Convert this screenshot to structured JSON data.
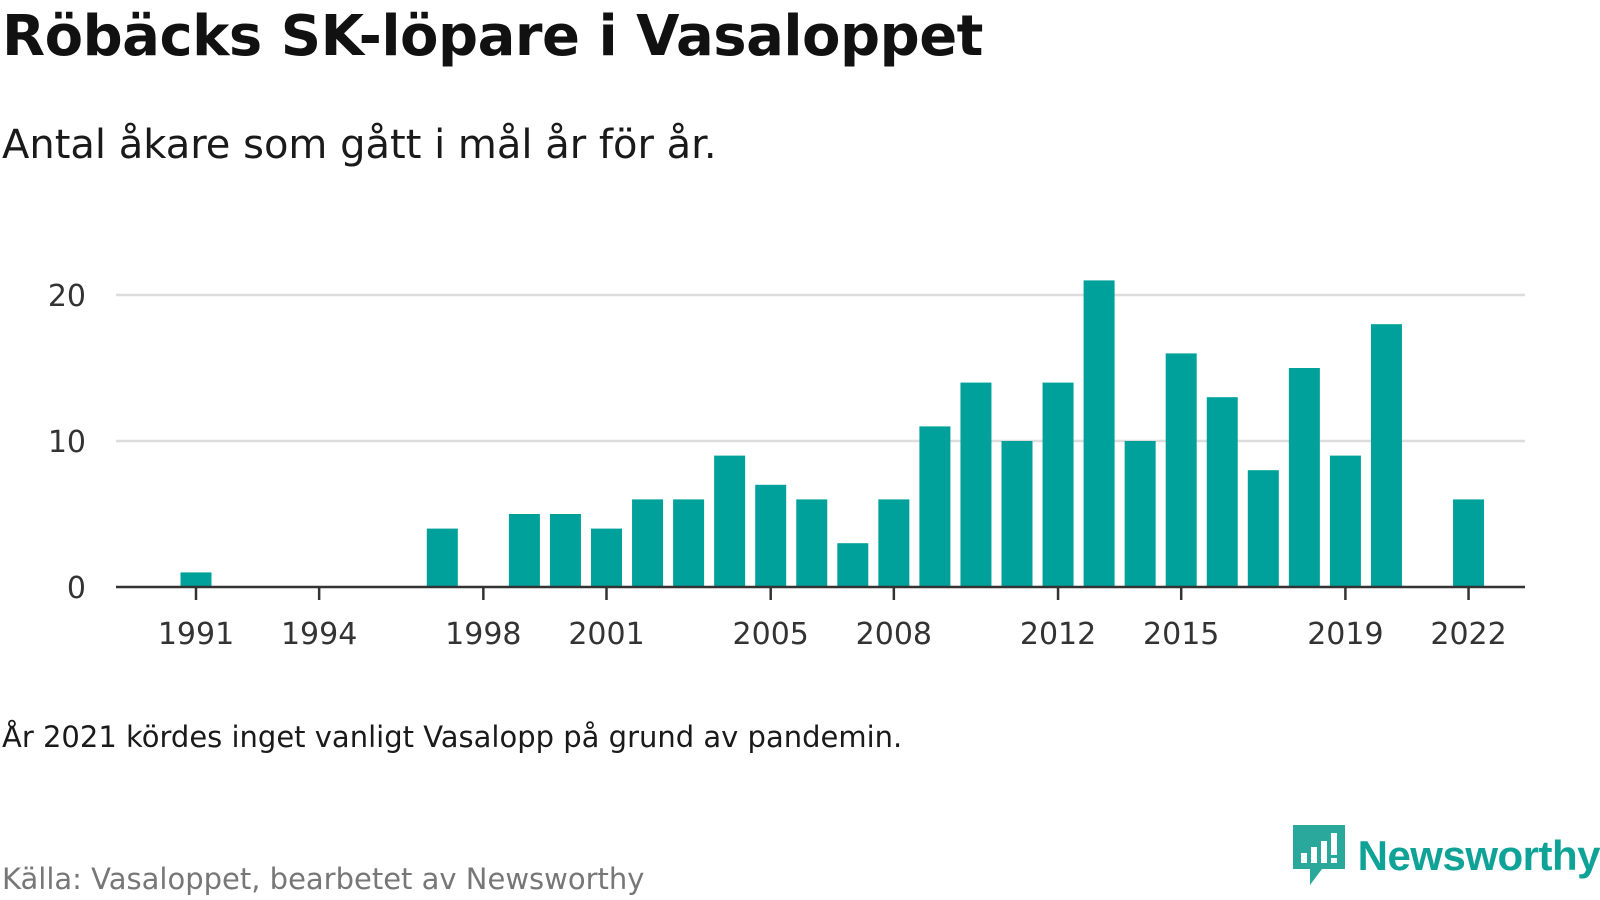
{
  "title": "Röbäcks SK-löpare i Vasaloppet",
  "subtitle": "Antal åkare som gått i mål år för år.",
  "note": "År 2021 kördes inget vanligt Vasalopp på grund av pandemin.",
  "source": "Källa: Vasaloppet, bearbetet av Newsworthy",
  "brand": {
    "name": "Newsworthy",
    "icon": "newsworthy-logo-icon"
  },
  "colors": {
    "bar": "#00a19a",
    "grid": "#dddddd",
    "axis": "#333333",
    "brand": "#0fa397"
  },
  "chart_data": {
    "type": "bar",
    "title": "Röbäcks SK-löpare i Vasaloppet",
    "subtitle": "Antal åkare som gått i mål år för år.",
    "x": [
      1991,
      1992,
      1993,
      1994,
      1995,
      1996,
      1997,
      1998,
      1999,
      2000,
      2001,
      2002,
      2003,
      2004,
      2005,
      2006,
      2007,
      2008,
      2009,
      2010,
      2011,
      2012,
      2013,
      2014,
      2015,
      2016,
      2017,
      2018,
      2019,
      2020,
      2021,
      2022
    ],
    "values": [
      1,
      0,
      0,
      0,
      0,
      0,
      4,
      0,
      5,
      5,
      4,
      6,
      6,
      9,
      7,
      6,
      3,
      6,
      11,
      14,
      10,
      14,
      21,
      10,
      16,
      13,
      8,
      15,
      9,
      18,
      0,
      6
    ],
    "x_ticks": [
      "1991",
      "1994",
      "1998",
      "2001",
      "2005",
      "2008",
      "2012",
      "2015",
      "2019",
      "2022"
    ],
    "y_ticks": [
      "0",
      "10",
      "20"
    ],
    "ylim": [
      0,
      22
    ],
    "grid": true
  }
}
